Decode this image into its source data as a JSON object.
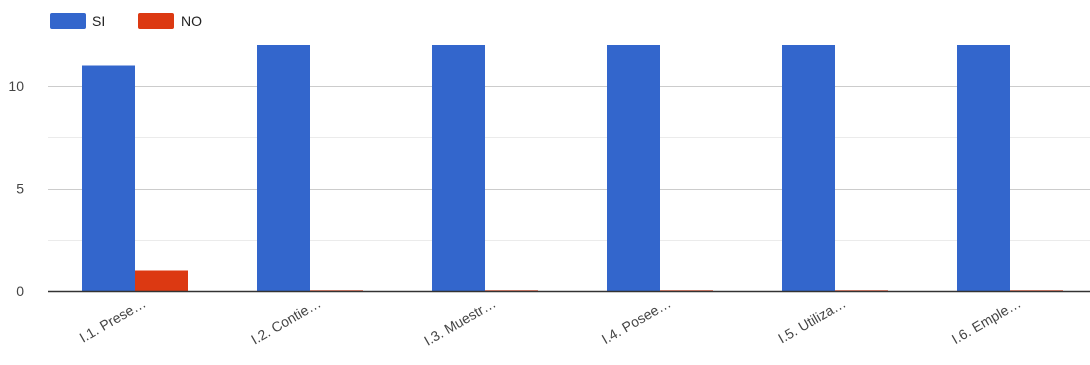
{
  "chart_data": {
    "type": "bar",
    "categories": [
      "I.1. Prese…",
      "I.2. Contie…",
      "I.3. Muestr…",
      "I.4. Posee…",
      "I.5. Utiliza…",
      "I.6. Emple…"
    ],
    "series": [
      {
        "name": "SI",
        "color": "#3366cc",
        "values": [
          11,
          12,
          12,
          12,
          12,
          12
        ]
      },
      {
        "name": "NO",
        "color": "#dc3912",
        "values": [
          1,
          0,
          0,
          0,
          0,
          0
        ]
      }
    ],
    "title": "",
    "xlabel": "",
    "ylabel": "",
    "ylim": [
      0,
      12
    ],
    "yticks": [
      0,
      5,
      10
    ],
    "grid": true,
    "legend_position": "top-left"
  }
}
